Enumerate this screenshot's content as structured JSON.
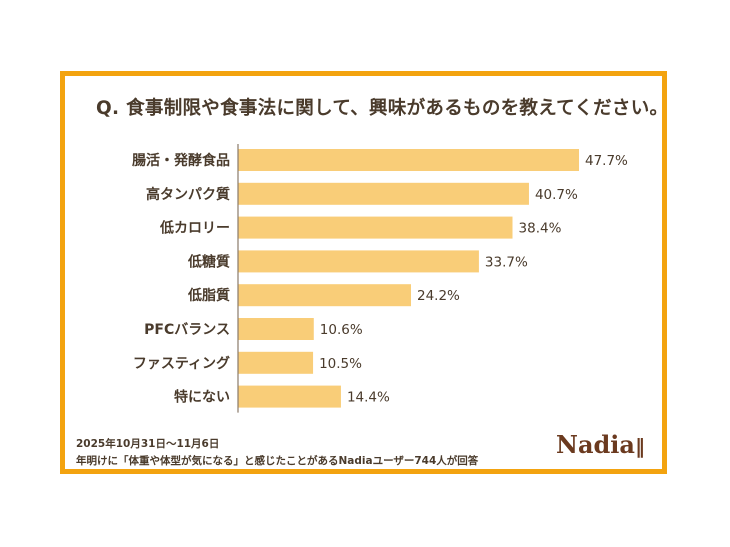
{
  "chart_data": {
    "type": "bar",
    "orientation": "horizontal",
    "title": "Q. 食事制限や食事法に関して、興味があるものを教えてください。",
    "categories": [
      "腸活・発酵食品",
      "高タンパク質",
      "低カロリー",
      "低糖質",
      "低脂質",
      "PFCバランス",
      "ファスティング",
      "特にない"
    ],
    "values": [
      47.7,
      40.7,
      38.4,
      33.7,
      24.2,
      10.6,
      10.5,
      14.4
    ],
    "value_suffix": "%",
    "xlim": [
      0,
      50
    ],
    "grid": false,
    "bar_color": "#f9cd78"
  },
  "footer": {
    "date": "2025年10月31日〜11月6日",
    "note": "年明けに「体重や体型が気になる」と感じたことがあるNadiaユーザー744人が回答"
  },
  "logo": "Nadia",
  "colors": {
    "frame": "#f3a30f",
    "text": "#4a3b2c"
  }
}
